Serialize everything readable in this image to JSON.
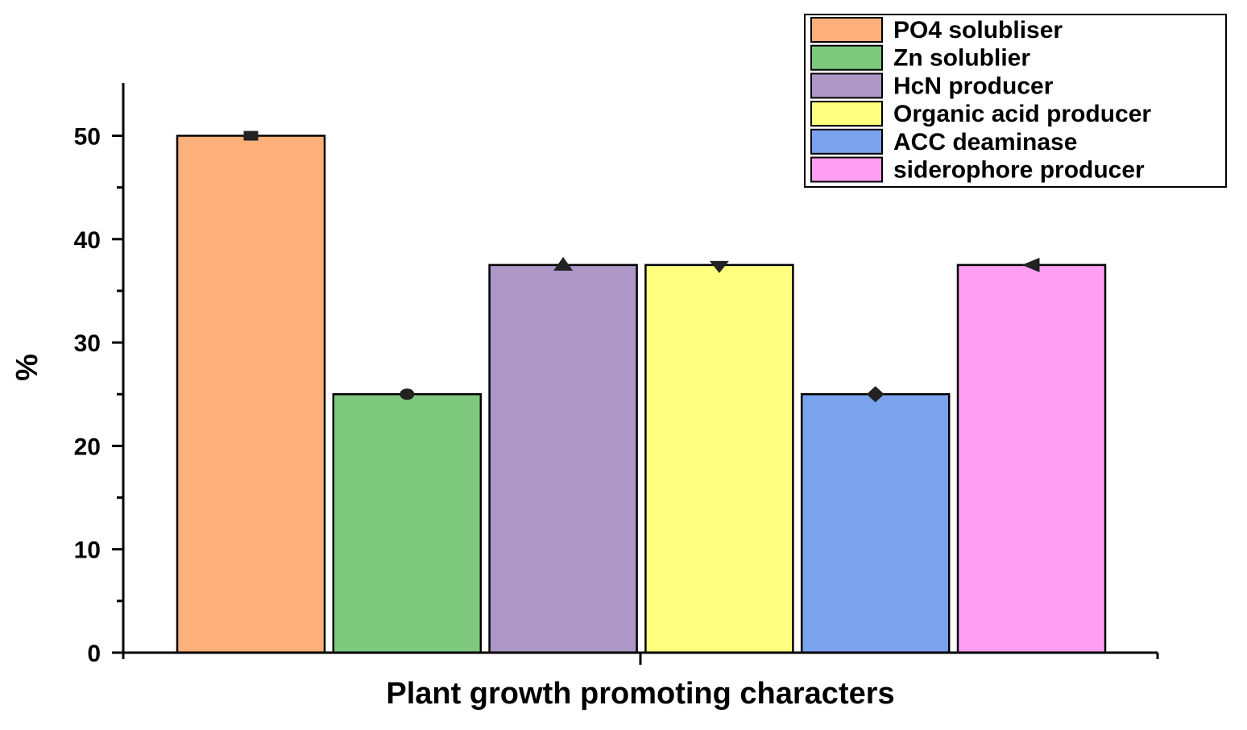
{
  "chart_data": {
    "type": "bar",
    "title": "",
    "xlabel": "Plant growth promoting characters",
    "ylabel": "%",
    "ylim": [
      0,
      55
    ],
    "yticks": [
      0,
      10,
      20,
      30,
      40,
      50
    ],
    "grid": false,
    "legend_position": "top-right",
    "series": [
      {
        "name": "PO4 solubliser",
        "value": 50,
        "color": "#FDB07A",
        "marker": "square"
      },
      {
        "name": "Zn solublier",
        "value": 25,
        "color": "#7FC97F",
        "marker": "circle"
      },
      {
        "name": "HcN producer",
        "value": 37.5,
        "color": "#AC97C6",
        "marker": "triangle-up"
      },
      {
        "name": "Organic acid producer",
        "value": 37.5,
        "color": "#FFFF80",
        "marker": "triangle-down"
      },
      {
        "name": "ACC deaminase",
        "value": 25,
        "color": "#7BA3ED",
        "marker": "diamond"
      },
      {
        "name": "siderophore producer",
        "value": 37.5,
        "color": "#FF9FF3",
        "marker": "triangle-left"
      }
    ]
  }
}
